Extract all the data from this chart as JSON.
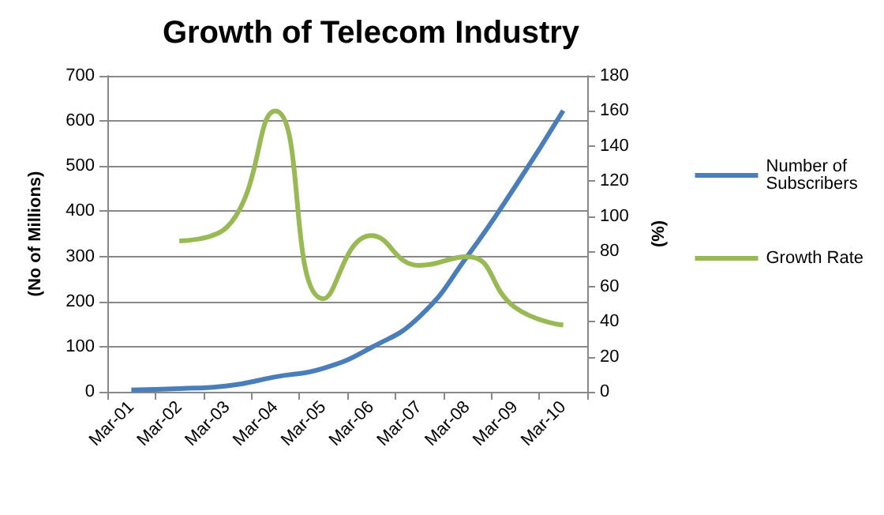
{
  "chart_data": {
    "type": "line",
    "title": "Growth of Telecom Industry",
    "ylabel": "(No of Millions)",
    "y2label": "(%)",
    "categories": [
      "Mar-01",
      "Mar-02",
      "Mar-03",
      "Mar-04",
      "Mar-05",
      "Mar-06",
      "Mar-07",
      "Mar-08",
      "Mar-09",
      "Mar-10"
    ],
    "series": [
      {
        "name": "Number of Subscribers",
        "color": "#4a7ebb",
        "values": [
          4,
          7,
          13,
          33,
          52,
          98,
          166,
          300,
          455,
          623
        ]
      },
      {
        "name": "Growth Rate",
        "color": "#98b954",
        "axis": "y2",
        "values": [
          null,
          86,
          94,
          160,
          53,
          89,
          72,
          77,
          48,
          38
        ]
      }
    ],
    "ylim": [
      0,
      700
    ],
    "yticks": [
      0,
      100,
      200,
      300,
      400,
      500,
      600,
      700
    ],
    "y2lim": [
      0,
      180
    ],
    "y2ticks": [
      0,
      20,
      40,
      60,
      80,
      100,
      120,
      140,
      160,
      180
    ],
    "grid": "y",
    "legend": "right",
    "marker": "none",
    "line_style": "solid"
  }
}
